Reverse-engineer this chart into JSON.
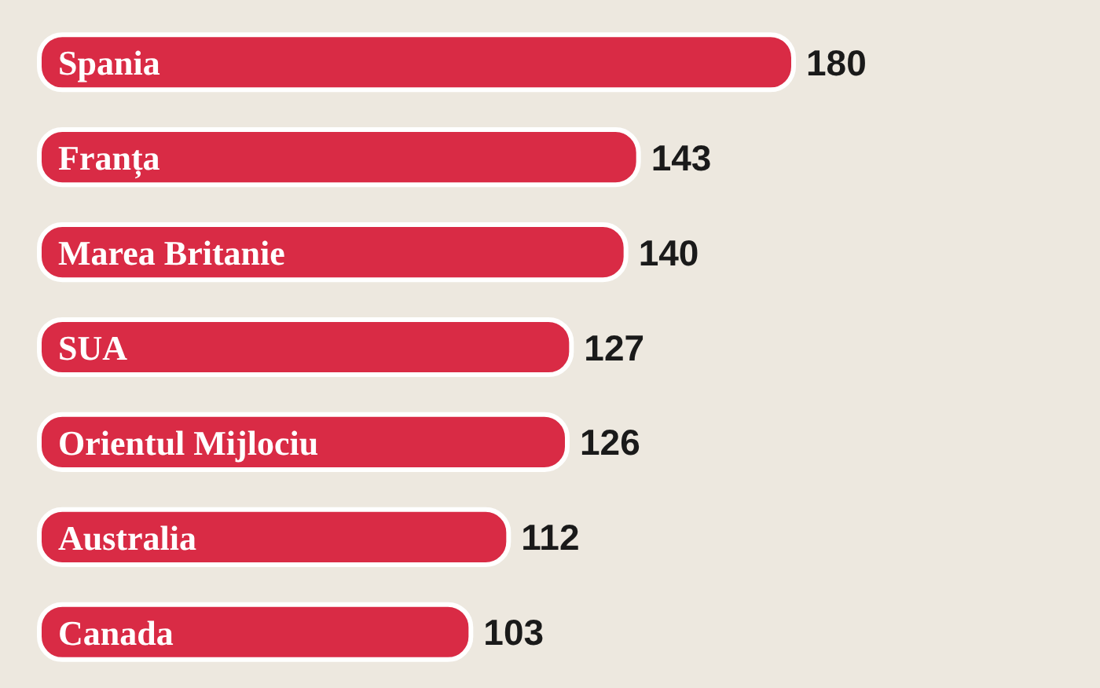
{
  "chart_data": {
    "type": "bar",
    "orientation": "horizontal",
    "categories": [
      "Spania",
      "Franța",
      "Marea Britanie",
      "SUA",
      "Orientul Mijlociu",
      "Australia",
      "Canada"
    ],
    "values": [
      180,
      143,
      140,
      127,
      126,
      112,
      103
    ],
    "color": "#d92b45",
    "data_labels": true
  }
}
